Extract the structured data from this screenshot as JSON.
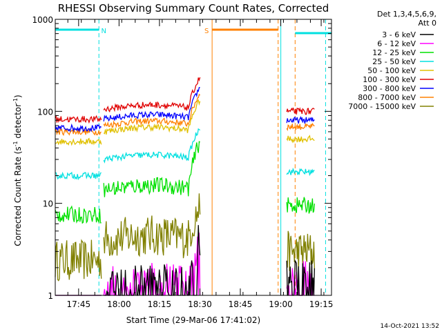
{
  "chart_data": {
    "type": "line",
    "title": "RHESSI Observing Summary Count Rates, Corrected",
    "xlabel": "Start Time (29-Mar-06 17:41:02)",
    "ylabel": "Corrected Count Rate (s",
    "ylabel_sup1": "-1",
    "ylabel_mid": " detector",
    "ylabel_sup2": "-1",
    "ylabel_end": ")",
    "y_scale": "log",
    "ylim": [
      1,
      1000
    ],
    "xlim_minutes_from_start": [
      -4.7,
      97.8
    ],
    "x_ticks": [
      {
        "label": "17:45",
        "minute": 3.97
      },
      {
        "label": "18:00",
        "minute": 18.97
      },
      {
        "label": "18:15",
        "minute": 33.97
      },
      {
        "label": "18:30",
        "minute": 48.97
      },
      {
        "label": "18:45",
        "minute": 63.97
      },
      {
        "label": "19:00",
        "minute": 78.97
      },
      {
        "label": "19:15",
        "minute": 93.97
      }
    ],
    "y_ticks": [
      {
        "label": "1",
        "value": 1
      },
      {
        "label": "10",
        "value": 10
      },
      {
        "label": "100",
        "value": 100
      },
      {
        "label": "1000",
        "value": 1000
      }
    ],
    "legend_placement": "top-right outside",
    "legend_header": [
      "Det 1,3,4,5,6,9,",
      "Att 0"
    ],
    "series": [
      {
        "name": "3 - 6 keV",
        "color": "#000000"
      },
      {
        "name": "6 - 12 keV",
        "color": "#ff00ff"
      },
      {
        "name": "12 - 25 keV",
        "color": "#00e000"
      },
      {
        "name": "25 - 50 keV",
        "color": "#00e0e0"
      },
      {
        "name": "50 - 100 keV",
        "color": "#e0c000"
      },
      {
        "name": "100 - 300 keV",
        "color": "#e00000"
      },
      {
        "name": "300 - 800 keV",
        "color": "#0000ff"
      },
      {
        "name": "800 - 7000 keV",
        "color": "#ff8000"
      },
      {
        "name": "7000 - 15000 keV",
        "color": "#808000"
      }
    ],
    "segments": [
      {
        "start": -4.7,
        "end": 12.4,
        "series": [
          0,
          0,
          7.5,
          20,
          47,
          82,
          66,
          60,
          2.4
        ]
      },
      {
        "start": 13.3,
        "end": 49.0,
        "series": [
          1.2,
          1.2,
          14,
          30,
          60,
          105,
          82,
          70,
          4.0
        ]
      },
      {
        "start": 81.2,
        "end": 91.5,
        "series": [
          1.5,
          1.5,
          9.5,
          22,
          50,
          100,
          80,
          68,
          3.0
        ]
      }
    ],
    "annotations": [
      {
        "label": "N",
        "color": "#00e0e0",
        "start": -4.7,
        "end": 11.5
      },
      {
        "label": "S",
        "color": "#ff8000",
        "start": 53.5,
        "end": 78.0
      }
    ],
    "footer_date": "14-Oct-2021 13:52"
  }
}
